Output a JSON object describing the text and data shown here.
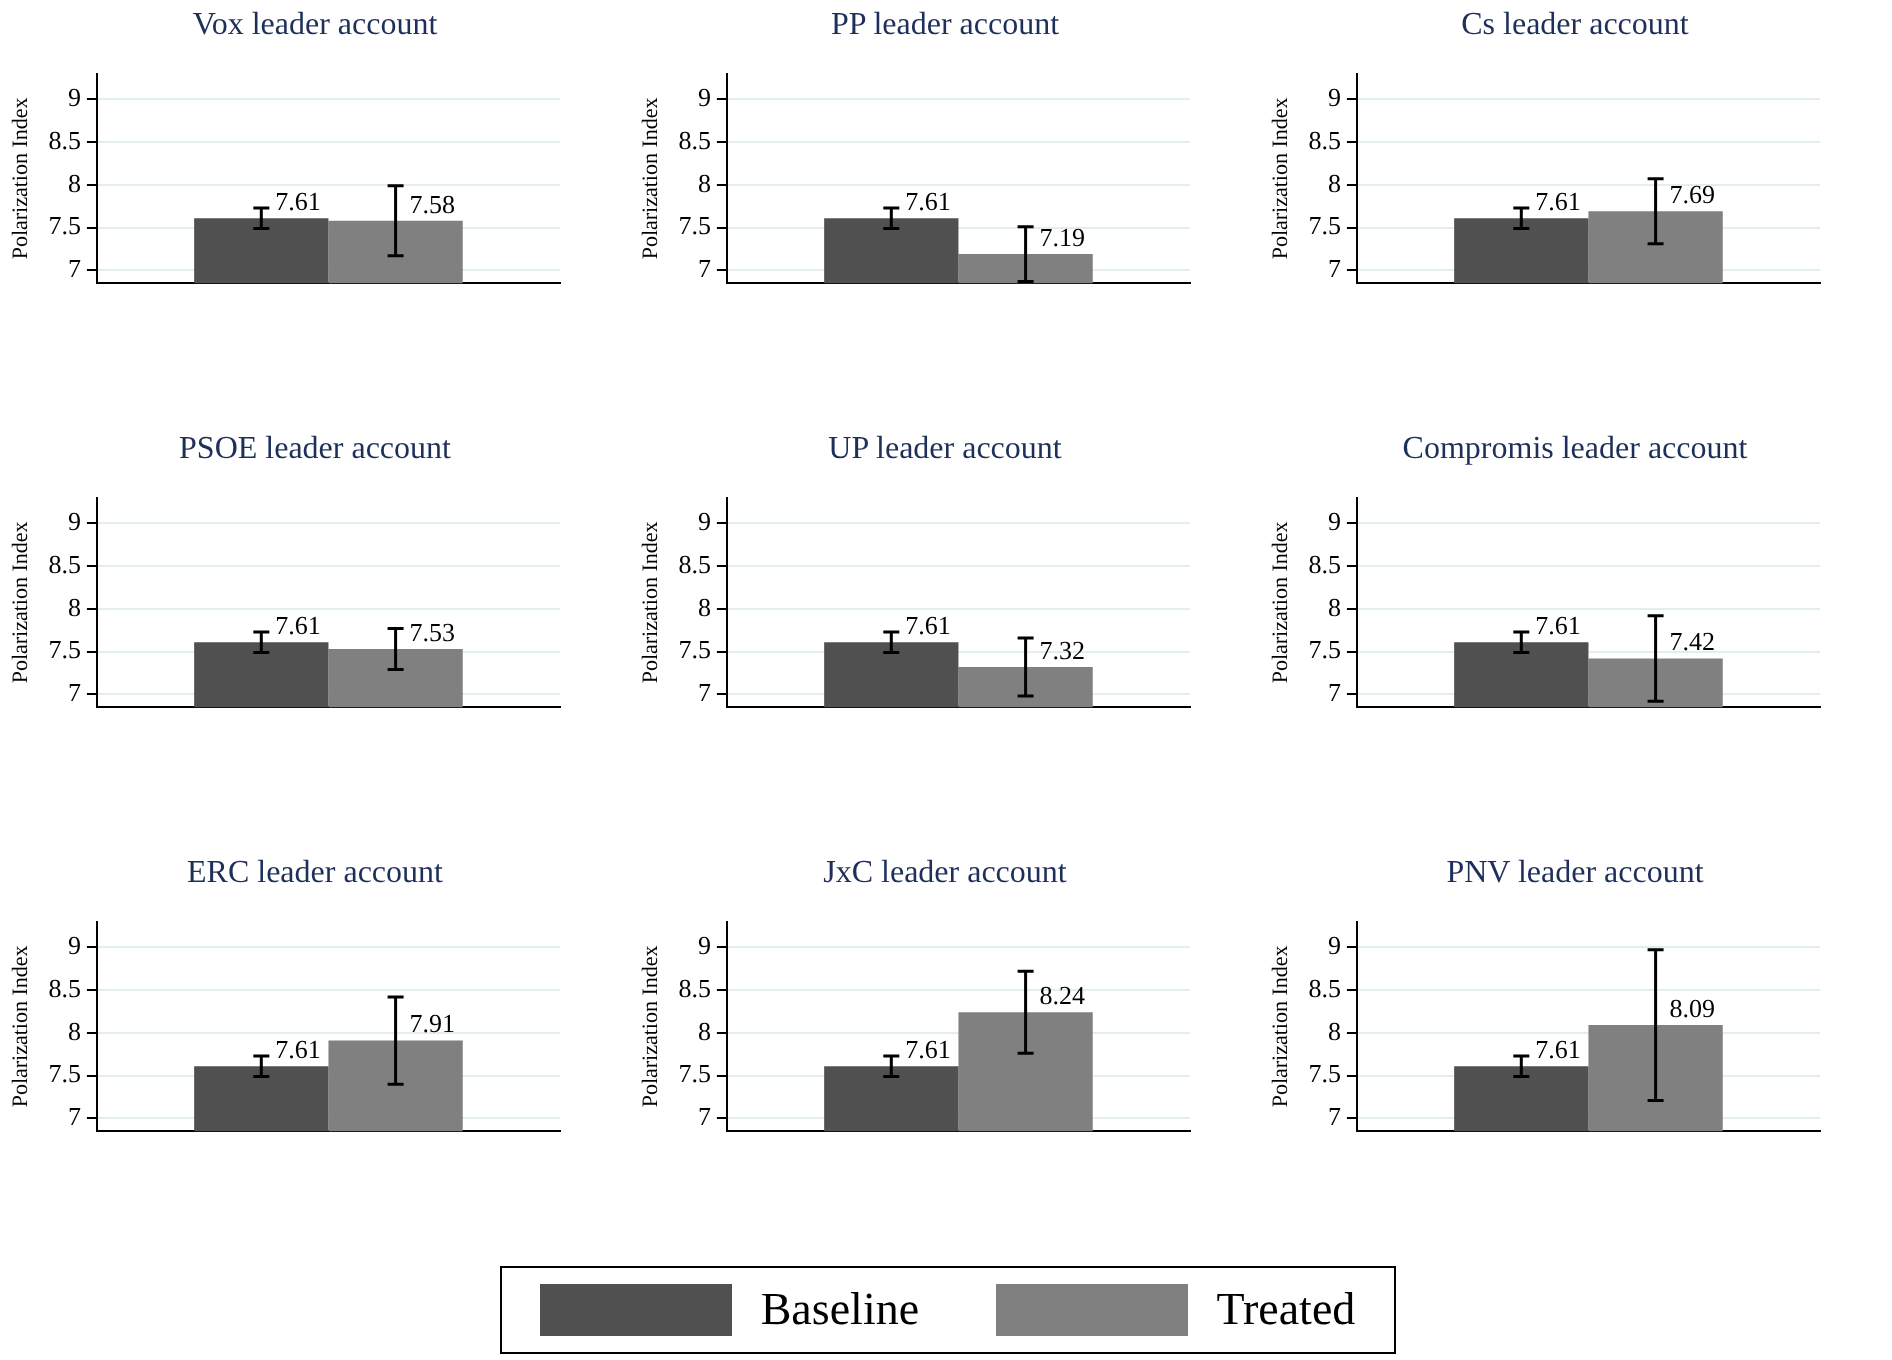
{
  "chart_data": [
    {
      "type": "bar",
      "title": "Vox leader account",
      "ylabel": "Polarization Index",
      "categories": [
        null
      ],
      "ylim": [
        6.85,
        9.3
      ],
      "yticks": [
        7,
        7.5,
        8,
        8.5,
        9
      ],
      "grid": "y",
      "legend": false,
      "data_labels": true,
      "series": [
        {
          "color": "#505050",
          "values": [
            7.61
          ],
          "errors": [
            [
              7.49,
              7.73
            ]
          ]
        },
        {
          "color": "#808080",
          "values": [
            7.58
          ],
          "errors": [
            [
              7.17,
              7.99
            ]
          ]
        }
      ]
    },
    {
      "type": "bar",
      "title": "PP leader account",
      "ylabel": "Polarization Index",
      "categories": [
        null
      ],
      "ylim": [
        6.85,
        9.3
      ],
      "yticks": [
        7,
        7.5,
        8,
        8.5,
        9
      ],
      "grid": "y",
      "legend": false,
      "data_labels": true,
      "series": [
        {
          "color": "#505050",
          "values": [
            7.61
          ],
          "errors": [
            [
              7.49,
              7.73
            ]
          ]
        },
        {
          "color": "#808080",
          "values": [
            7.19
          ],
          "errors": [
            [
              6.87,
              7.51
            ]
          ]
        }
      ]
    },
    {
      "type": "bar",
      "title": "Cs leader account",
      "ylabel": "Polarization Index",
      "categories": [
        null
      ],
      "ylim": [
        6.85,
        9.3
      ],
      "yticks": [
        7,
        7.5,
        8,
        8.5,
        9
      ],
      "grid": "y",
      "legend": false,
      "data_labels": true,
      "series": [
        {
          "color": "#505050",
          "values": [
            7.61
          ],
          "errors": [
            [
              7.49,
              7.73
            ]
          ]
        },
        {
          "color": "#808080",
          "values": [
            7.69
          ],
          "errors": [
            [
              7.31,
              8.07
            ]
          ]
        }
      ]
    },
    {
      "type": "bar",
      "title": "PSOE leader account",
      "ylabel": "Polarization Index",
      "categories": [
        null
      ],
      "ylim": [
        6.85,
        9.3
      ],
      "yticks": [
        7,
        7.5,
        8,
        8.5,
        9
      ],
      "grid": "y",
      "legend": false,
      "data_labels": true,
      "series": [
        {
          "color": "#505050",
          "values": [
            7.61
          ],
          "errors": [
            [
              7.49,
              7.73
            ]
          ]
        },
        {
          "color": "#808080",
          "values": [
            7.53
          ],
          "errors": [
            [
              7.29,
              7.77
            ]
          ]
        }
      ]
    },
    {
      "type": "bar",
      "title": "UP leader account",
      "ylabel": "Polarization Index",
      "categories": [
        null
      ],
      "ylim": [
        6.85,
        9.3
      ],
      "yticks": [
        7,
        7.5,
        8,
        8.5,
        9
      ],
      "grid": "y",
      "legend": false,
      "data_labels": true,
      "series": [
        {
          "color": "#505050",
          "values": [
            7.61
          ],
          "errors": [
            [
              7.49,
              7.73
            ]
          ]
        },
        {
          "color": "#808080",
          "values": [
            7.32
          ],
          "errors": [
            [
              6.98,
              7.66
            ]
          ]
        }
      ]
    },
    {
      "type": "bar",
      "title": "Compromis leader account",
      "ylabel": "Polarization Index",
      "categories": [
        null
      ],
      "ylim": [
        6.85,
        9.3
      ],
      "yticks": [
        7,
        7.5,
        8,
        8.5,
        9
      ],
      "grid": "y",
      "legend": false,
      "data_labels": true,
      "series": [
        {
          "color": "#505050",
          "values": [
            7.61
          ],
          "errors": [
            [
              7.49,
              7.73
            ]
          ]
        },
        {
          "color": "#808080",
          "values": [
            7.42
          ],
          "errors": [
            [
              6.92,
              7.92
            ]
          ]
        }
      ]
    },
    {
      "type": "bar",
      "title": "ERC leader account",
      "ylabel": "Polarization Index",
      "categories": [
        null
      ],
      "ylim": [
        6.85,
        9.3
      ],
      "yticks": [
        7,
        7.5,
        8,
        8.5,
        9
      ],
      "grid": "y",
      "legend": false,
      "data_labels": true,
      "series": [
        {
          "color": "#505050",
          "values": [
            7.61
          ],
          "errors": [
            [
              7.49,
              7.73
            ]
          ]
        },
        {
          "color": "#808080",
          "values": [
            7.91
          ],
          "errors": [
            [
              7.4,
              8.42
            ]
          ]
        }
      ]
    },
    {
      "type": "bar",
      "title": "JxC leader account",
      "ylabel": "Polarization Index",
      "categories": [
        null
      ],
      "ylim": [
        6.85,
        9.3
      ],
      "yticks": [
        7,
        7.5,
        8,
        8.5,
        9
      ],
      "grid": "y",
      "legend": false,
      "data_labels": true,
      "series": [
        {
          "color": "#505050",
          "values": [
            7.61
          ],
          "errors": [
            [
              7.49,
              7.73
            ]
          ]
        },
        {
          "color": "#808080",
          "values": [
            8.24
          ],
          "errors": [
            [
              7.76,
              8.72
            ]
          ]
        }
      ]
    },
    {
      "type": "bar",
      "title": "PNV leader account",
      "ylabel": "Polarization Index",
      "categories": [
        null
      ],
      "ylim": [
        6.85,
        9.3
      ],
      "yticks": [
        7,
        7.5,
        8,
        8.5,
        9
      ],
      "grid": "y",
      "legend": "bottom",
      "data_labels": true,
      "series": [
        {
          "name": "Baseline",
          "color": "#505050",
          "values": [
            7.61
          ],
          "errors": [
            [
              7.49,
              7.73
            ]
          ]
        },
        {
          "name": "Treated",
          "color": "#808080",
          "values": [
            8.09
          ],
          "errors": [
            [
              7.21,
              8.97
            ]
          ]
        }
      ]
    }
  ]
}
